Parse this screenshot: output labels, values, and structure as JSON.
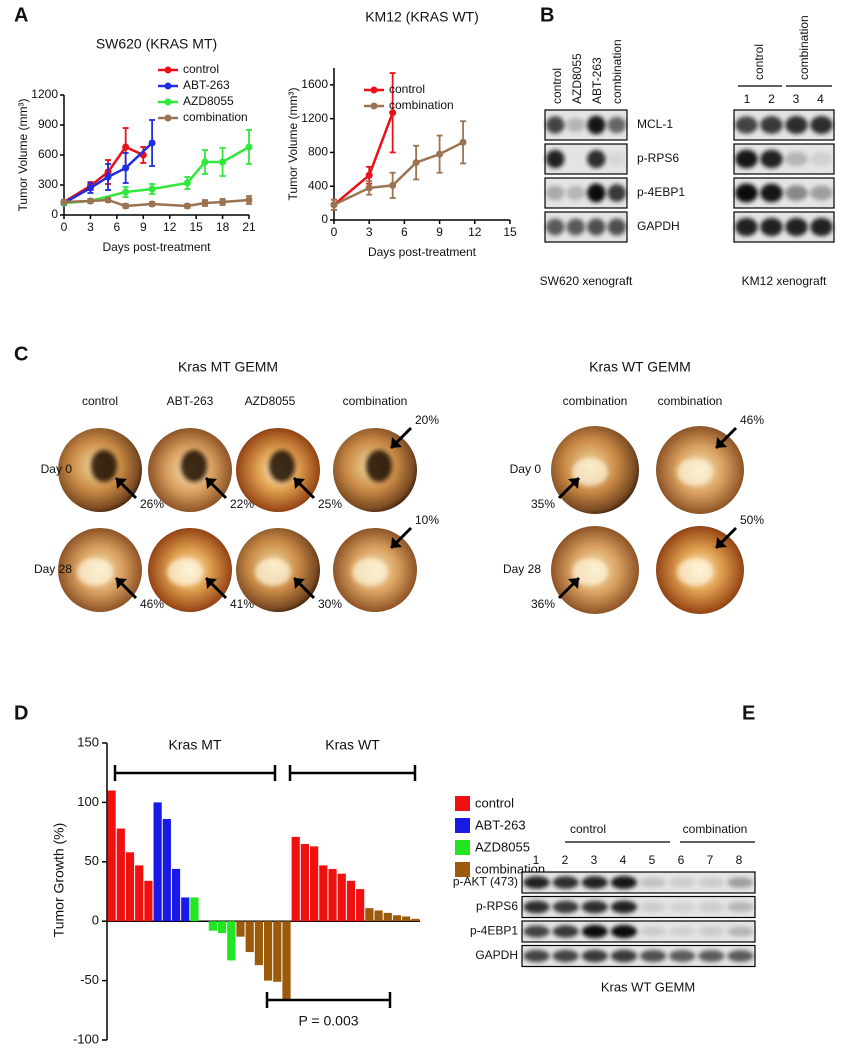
{
  "panel_labels": [
    "A",
    "B",
    "C",
    "D",
    "E"
  ],
  "chart_data": [
    {
      "type": "line",
      "title": "SW620 (KRAS MT)",
      "x_label": "Days post-treatment",
      "y_label": "Tumor Volume (mm³)",
      "xlim": [
        0,
        21
      ],
      "xticks": [
        0,
        3,
        6,
        9,
        12,
        15,
        18,
        21
      ],
      "ylim": [
        0,
        1200
      ],
      "yticks": [
        0,
        300,
        600,
        900,
        1200
      ],
      "series": [
        {
          "name": "control",
          "color": "#e8101a",
          "x": [
            0,
            3,
            5,
            7,
            9
          ],
          "values": [
            130,
            290,
            430,
            680,
            600
          ],
          "errors": [
            20,
            40,
            120,
            190,
            80
          ]
        },
        {
          "name": "ABT-263",
          "color": "#1f2ee0",
          "x": [
            0,
            3,
            5,
            7,
            10
          ],
          "values": [
            120,
            270,
            380,
            470,
            720
          ],
          "errors": [
            20,
            50,
            130,
            150,
            230
          ]
        },
        {
          "name": "AZD8055",
          "color": "#2ee83a",
          "x": [
            0,
            3,
            7,
            10,
            14,
            16,
            18,
            21
          ],
          "values": [
            120,
            140,
            230,
            260,
            320,
            530,
            530,
            680
          ],
          "errors": [
            15,
            20,
            50,
            50,
            60,
            120,
            140,
            170
          ]
        },
        {
          "name": "combination",
          "color": "#9c7350",
          "x": [
            0,
            3,
            5,
            7,
            10,
            14,
            16,
            18,
            21
          ],
          "values": [
            130,
            140,
            150,
            90,
            110,
            90,
            120,
            130,
            150
          ],
          "errors": [
            20,
            20,
            20,
            20,
            20,
            20,
            30,
            30,
            40
          ]
        }
      ]
    },
    {
      "type": "line",
      "title": "KM12 (KRAS WT)",
      "x_label": "Days post-treatment",
      "y_label": "Tumor Volume (mm³)",
      "xlim": [
        0,
        15
      ],
      "xticks": [
        0,
        3,
        6,
        9,
        12,
        15
      ],
      "ylim": [
        0,
        1800
      ],
      "yticks": [
        0,
        400,
        800,
        1200,
        1600
      ],
      "series": [
        {
          "name": "control",
          "color": "#e8101a",
          "x": [
            0,
            3,
            5
          ],
          "values": [
            180,
            530,
            1270
          ],
          "errors": [
            60,
            100,
            470
          ]
        },
        {
          "name": "combination",
          "color": "#9c7350",
          "x": [
            0,
            3,
            5,
            7,
            9,
            11
          ],
          "values": [
            180,
            380,
            410,
            680,
            780,
            920
          ],
          "errors": [
            60,
            80,
            150,
            200,
            220,
            250
          ]
        }
      ]
    },
    {
      "type": "bar",
      "y_label": "Tumor Growth (%)",
      "ylim": [
        -100,
        150
      ],
      "yticks": [
        -100,
        -50,
        0,
        50,
        100,
        150
      ],
      "annotations": [
        "Kras MT",
        "Kras WT",
        "P = 0.003"
      ],
      "series": [
        {
          "name": "control",
          "color": "#f01010",
          "values": [
            110,
            78,
            58,
            47,
            34,
            null,
            null,
            null,
            null,
            null,
            null,
            null,
            null,
            null,
            null,
            null,
            null,
            null,
            null,
            null,
            71,
            65,
            63,
            47,
            44,
            40,
            34,
            27,
            null,
            null,
            null,
            null,
            null,
            null
          ]
        },
        {
          "name": "ABT-263",
          "color": "#1a1ae6",
          "values": [
            null,
            null,
            null,
            null,
            null,
            100,
            86,
            44,
            20,
            null,
            null,
            null,
            null,
            null,
            null,
            null,
            null,
            null,
            null,
            null,
            null,
            null,
            null,
            null,
            null,
            null,
            null,
            null,
            null,
            null,
            null,
            null,
            null,
            null
          ]
        },
        {
          "name": "AZD8055",
          "color": "#22e622",
          "values": [
            null,
            null,
            null,
            null,
            null,
            null,
            null,
            null,
            null,
            20,
            null,
            -8,
            -10,
            -33,
            null,
            null,
            null,
            null,
            null,
            null,
            null,
            null,
            null,
            null,
            null,
            null,
            null,
            null,
            null,
            null,
            null,
            null,
            null,
            null
          ]
        },
        {
          "name": "combination",
          "color": "#9b5a0c",
          "values": [
            null,
            null,
            null,
            null,
            null,
            null,
            null,
            null,
            null,
            null,
            null,
            null,
            null,
            null,
            -13,
            -26,
            -37,
            -50,
            -51,
            -66,
            null,
            null,
            null,
            null,
            null,
            null,
            null,
            null,
            11,
            9,
            7,
            5,
            4,
            2
          ]
        }
      ]
    }
  ],
  "blots_b": {
    "columns": [
      "control",
      "AZD8055",
      "ABT-263",
      "combination"
    ],
    "rows": [
      "MCL-1",
      "p-RPS6",
      "p-4EBP1",
      "GAPDH"
    ],
    "caption": "SW620 xenograft",
    "km12": {
      "groups": [
        "control",
        "combination"
      ],
      "lanes": [
        "1",
        "2",
        "3",
        "4"
      ],
      "caption": "KM12 xenograft"
    }
  },
  "gemm": {
    "row_labels": [
      "Day 0",
      "Day 28"
    ],
    "groups": [
      {
        "title": "Kras MT GEMM",
        "columns": [
          "control",
          "ABT-263",
          "AZD8055",
          "combination"
        ],
        "rows": [
          [
            "26%",
            "22%",
            "25%",
            "20%"
          ],
          [
            "46%",
            "41%",
            "30%",
            "10%"
          ]
        ]
      },
      {
        "title": "Kras WT GEMM",
        "columns": [
          "combination",
          "combination"
        ],
        "rows": [
          [
            "35%",
            "46%"
          ],
          [
            "36%",
            "50%"
          ]
        ]
      }
    ]
  },
  "blots_e": {
    "groups": [
      "control",
      "combination"
    ],
    "lanes": [
      "1",
      "2",
      "3",
      "4",
      "5",
      "6",
      "7",
      "8"
    ],
    "rows": [
      "p-AKT (473)",
      "p-RPS6",
      "p-4EBP1",
      "GAPDH"
    ],
    "caption": "Kras WT GEMM"
  }
}
